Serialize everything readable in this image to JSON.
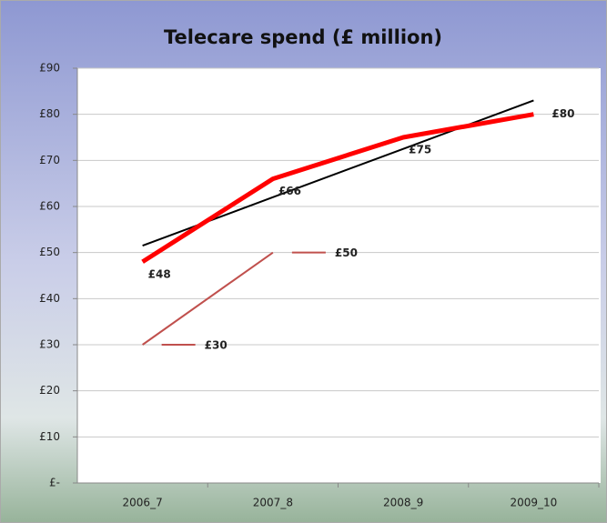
{
  "chart_data": {
    "type": "line",
    "title": "Telecare spend (£ million)",
    "categories": [
      "2006_7",
      "2007_8",
      "2008_9",
      "2009_10"
    ],
    "series": [
      {
        "color": "#ff0000",
        "values": [
          48,
          66,
          75,
          80
        ],
        "value_labels": [
          "£48",
          "£66",
          "£75",
          "£80"
        ]
      },
      {
        "color": "#c0504d",
        "values": [
          30,
          50,
          null,
          null
        ],
        "value_labels": [
          "£30",
          "£50",
          null,
          null
        ]
      },
      {
        "color": "#000000",
        "values": [
          51.5,
          62,
          72.5,
          83
        ]
      }
    ],
    "ylim": [
      0,
      90
    ],
    "yticks": [
      {
        "value": 0,
        "label": "£-"
      },
      {
        "value": 10,
        "label": "£10"
      },
      {
        "value": 20,
        "label": "£20"
      },
      {
        "value": 30,
        "label": "£30"
      },
      {
        "value": 40,
        "label": "£40"
      },
      {
        "value": 50,
        "label": "£50"
      },
      {
        "value": 60,
        "label": "£60"
      },
      {
        "value": 70,
        "label": "£70"
      },
      {
        "value": 80,
        "label": "£80"
      },
      {
        "value": 90,
        "label": "£90"
      }
    ],
    "grid": true
  }
}
